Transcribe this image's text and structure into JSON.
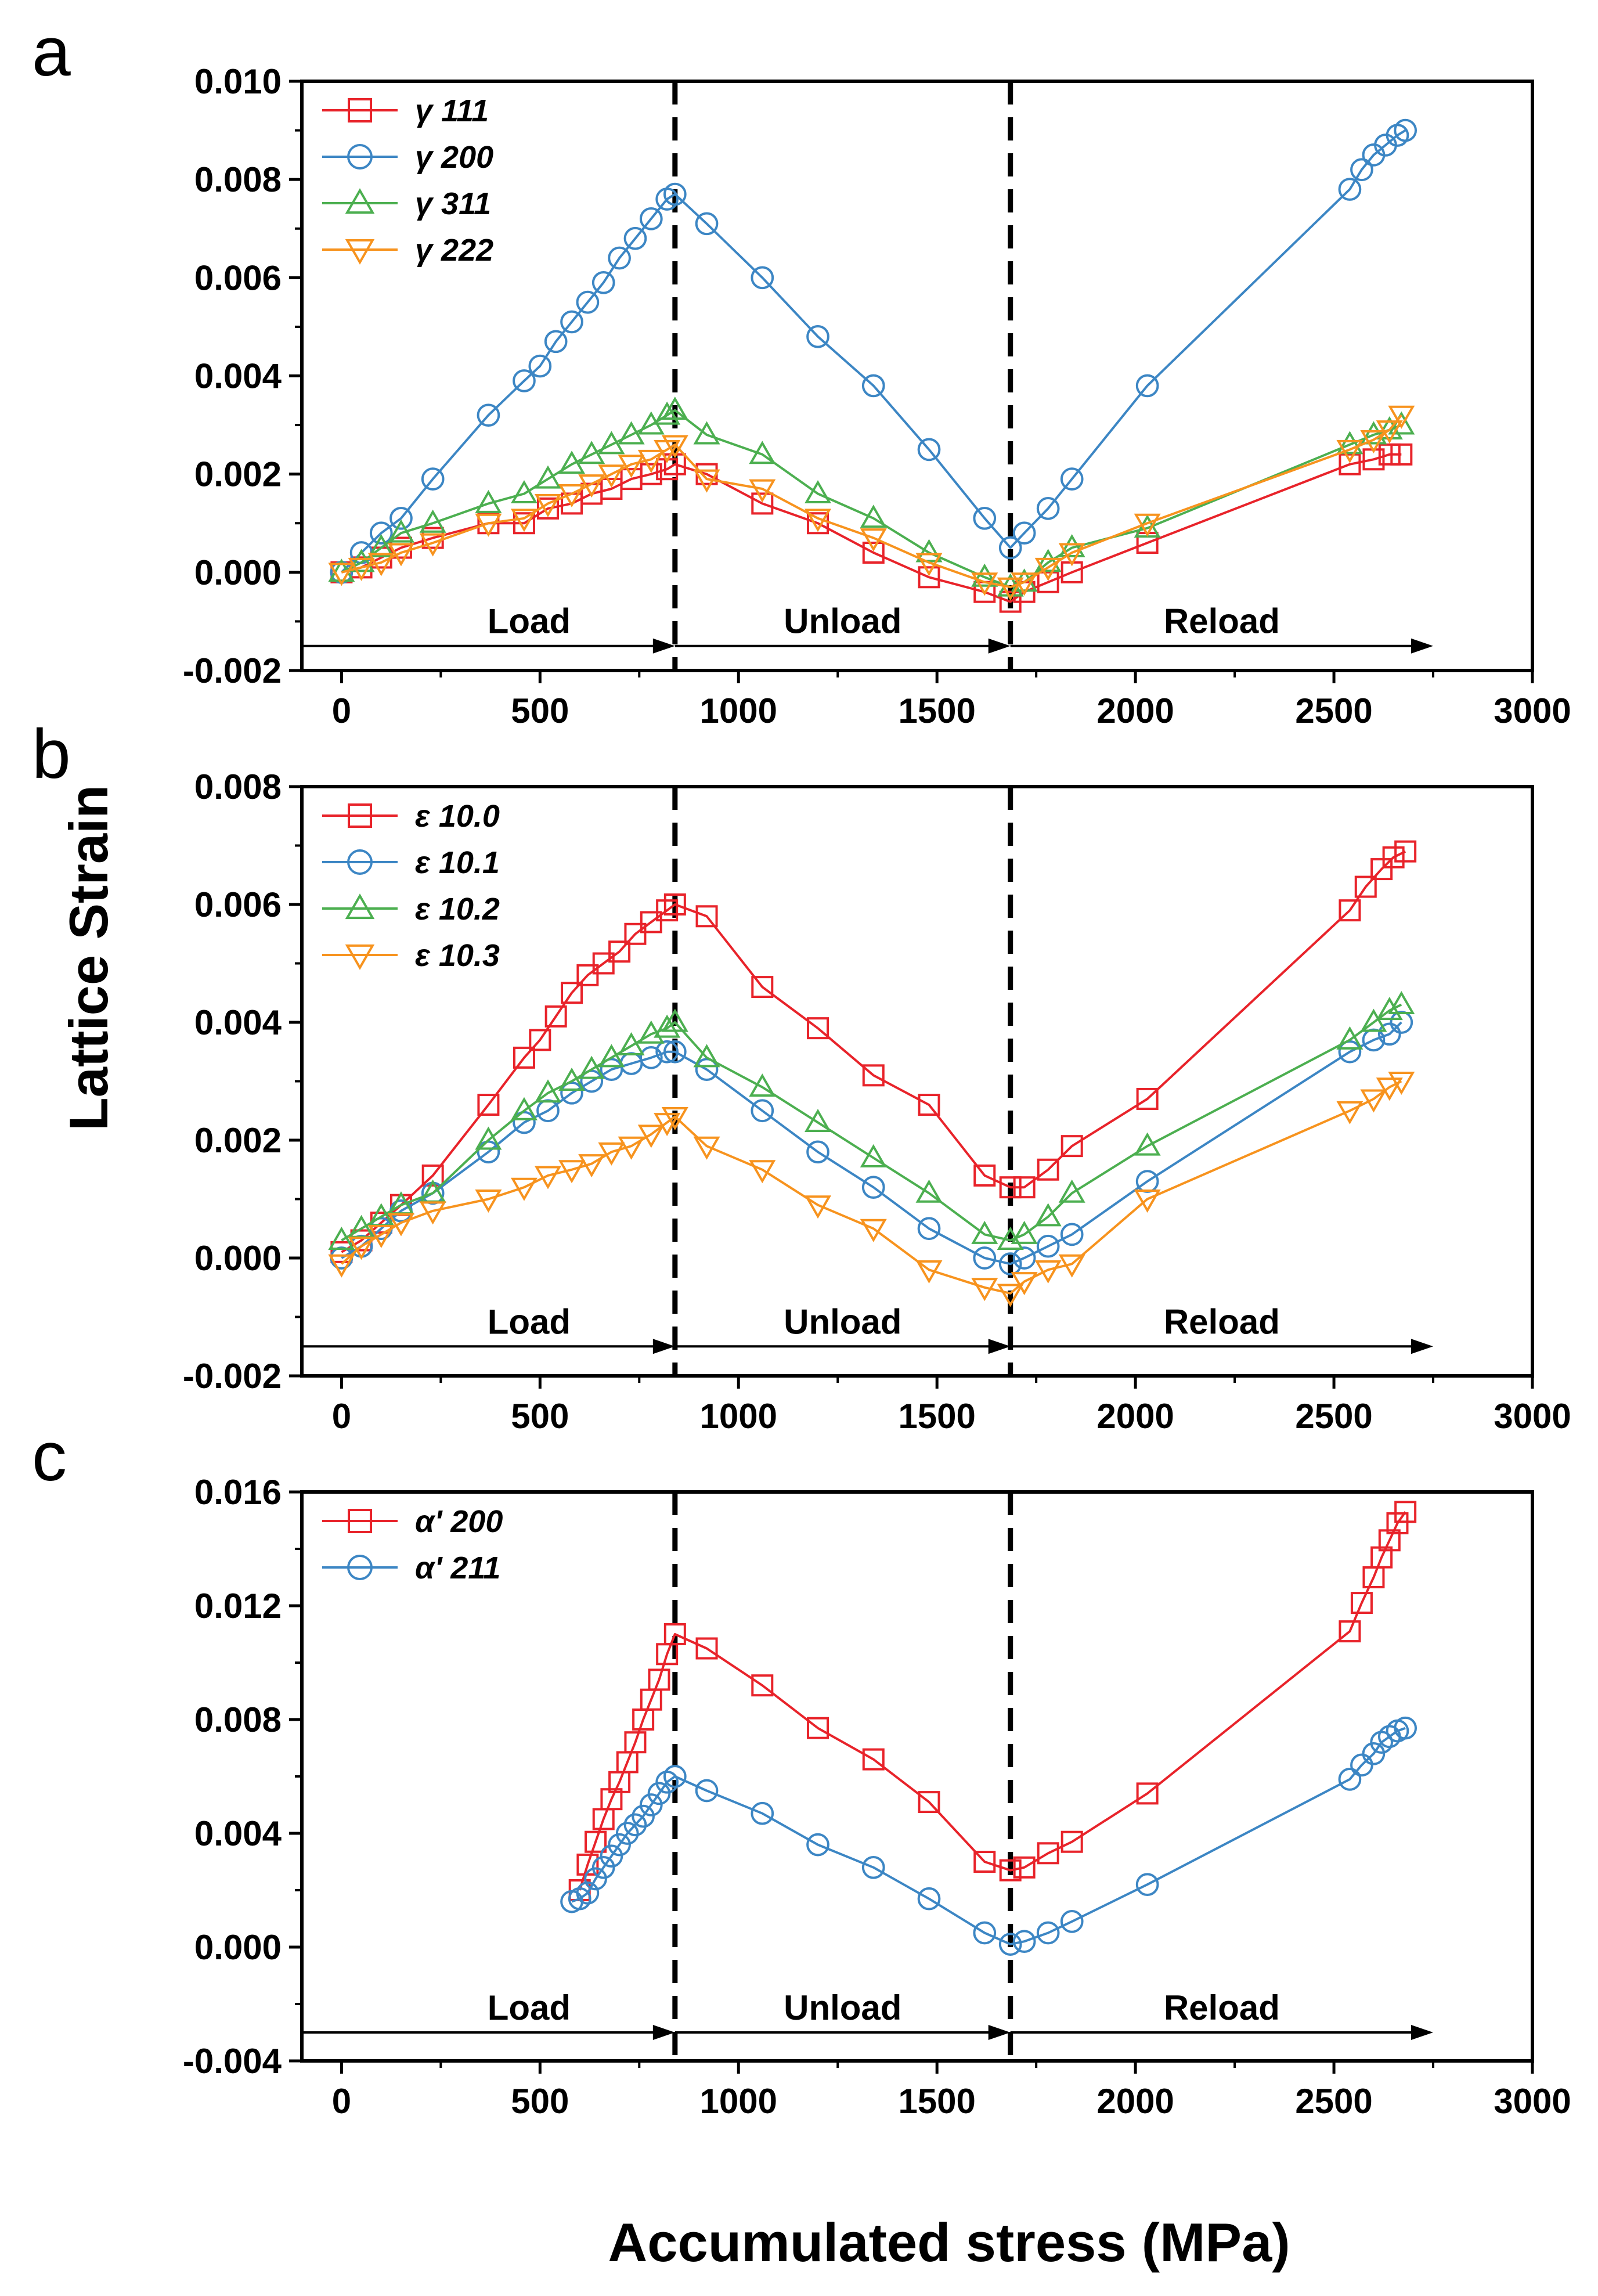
{
  "figure": {
    "xlabel": "Accumulated stress (MPa)",
    "ylabel": "Lattice Strain"
  },
  "colors": {
    "red": "#e8232a",
    "blue": "#3c86c4",
    "green": "#4caf50",
    "orange": "#f7931e",
    "axis": "#000000"
  },
  "chart_data": [
    {
      "type": "line",
      "panel": "a",
      "xlim": [
        -100,
        3000
      ],
      "ylim": [
        -0.002,
        0.01
      ],
      "xticks": [
        0,
        500,
        1000,
        1500,
        2000,
        2500,
        3000
      ],
      "yticks": [
        -0.002,
        0.0,
        0.002,
        0.004,
        0.006,
        0.008,
        0.01
      ],
      "ytick_labels": [
        "-0.002",
        "0.000",
        "0.002",
        "0.004",
        "0.006",
        "0.008",
        "0.010"
      ],
      "dividers": [
        840,
        1685
      ],
      "phases": [
        "Load",
        "Unload",
        "Reload"
      ],
      "phase_y": -0.0015,
      "series": [
        {
          "name": "γ 111",
          "color": "red",
          "marker": "square",
          "x": [
            0,
            50,
            100,
            150,
            230,
            370,
            460,
            520,
            580,
            630,
            680,
            730,
            780,
            820,
            840,
            920,
            1060,
            1200,
            1340,
            1480,
            1620,
            1685,
            1720,
            1780,
            1840,
            2030,
            2540,
            2600,
            2640,
            2670
          ],
          "y": [
            0.0,
            0.0001,
            0.0003,
            0.0005,
            0.0007,
            0.001,
            0.001,
            0.0013,
            0.0014,
            0.0016,
            0.0017,
            0.0019,
            0.002,
            0.0021,
            0.0022,
            0.002,
            0.0014,
            0.001,
            0.0004,
            -0.0001,
            -0.0004,
            -0.0006,
            -0.0004,
            -0.0002,
            0.0,
            0.0006,
            0.0022,
            0.0023,
            0.0024,
            0.0024
          ]
        },
        {
          "name": "γ 200",
          "color": "blue",
          "marker": "circle",
          "x": [
            0,
            50,
            100,
            150,
            230,
            370,
            460,
            500,
            540,
            580,
            620,
            660,
            700,
            740,
            780,
            820,
            840,
            920,
            1060,
            1200,
            1340,
            1480,
            1620,
            1685,
            1720,
            1780,
            1840,
            2030,
            2540,
            2570,
            2600,
            2630,
            2660,
            2680
          ],
          "y": [
            0.0,
            0.0004,
            0.0008,
            0.0011,
            0.0019,
            0.0032,
            0.0039,
            0.0042,
            0.0047,
            0.0051,
            0.0055,
            0.0059,
            0.0064,
            0.0068,
            0.0072,
            0.0076,
            0.0077,
            0.0071,
            0.006,
            0.0048,
            0.0038,
            0.0025,
            0.0011,
            0.0005,
            0.0008,
            0.0013,
            0.0019,
            0.0038,
            0.0078,
            0.0082,
            0.0085,
            0.0087,
            0.0089,
            0.009
          ]
        },
        {
          "name": "γ 311",
          "color": "green",
          "marker": "triangle-up",
          "x": [
            0,
            50,
            100,
            150,
            230,
            370,
            460,
            520,
            580,
            630,
            680,
            730,
            780,
            820,
            840,
            920,
            1060,
            1200,
            1340,
            1480,
            1620,
            1685,
            1720,
            1780,
            1840,
            2030,
            2540,
            2600,
            2640,
            2670
          ],
          "y": [
            0.0,
            0.0002,
            0.0005,
            0.0008,
            0.001,
            0.0014,
            0.0016,
            0.0019,
            0.0022,
            0.0024,
            0.0026,
            0.0028,
            0.003,
            0.0032,
            0.0033,
            0.0028,
            0.0024,
            0.0016,
            0.0011,
            0.0004,
            -0.0001,
            -0.0003,
            -0.0002,
            0.0002,
            0.0005,
            0.0009,
            0.0026,
            0.0028,
            0.0029,
            0.003
          ]
        },
        {
          "name": "γ 222",
          "color": "orange",
          "marker": "triangle-down",
          "x": [
            0,
            50,
            100,
            150,
            230,
            370,
            460,
            520,
            580,
            630,
            680,
            730,
            780,
            820,
            840,
            920,
            1060,
            1200,
            1340,
            1480,
            1620,
            1685,
            1720,
            1780,
            1840,
            2030,
            2540,
            2600,
            2640,
            2670
          ],
          "y": [
            0.0,
            0.0001,
            0.0002,
            0.0004,
            0.0006,
            0.001,
            0.0011,
            0.0014,
            0.0016,
            0.0018,
            0.002,
            0.0022,
            0.0023,
            0.0025,
            0.0026,
            0.0019,
            0.0017,
            0.0011,
            0.0007,
            0.0002,
            -0.0002,
            -0.0003,
            -0.0002,
            0.0001,
            0.0004,
            0.001,
            0.0025,
            0.0027,
            0.0029,
            0.0032
          ]
        }
      ]
    },
    {
      "type": "line",
      "panel": "b",
      "xlim": [
        -100,
        3000
      ],
      "ylim": [
        -0.002,
        0.008
      ],
      "xticks": [
        0,
        500,
        1000,
        1500,
        2000,
        2500,
        3000
      ],
      "yticks": [
        -0.002,
        0.0,
        0.002,
        0.004,
        0.006,
        0.008
      ],
      "ytick_labels": [
        "-0.002",
        "0.000",
        "0.002",
        "0.004",
        "0.006",
        "0.008"
      ],
      "dividers": [
        840,
        1685
      ],
      "phases": [
        "Load",
        "Unload",
        "Reload"
      ],
      "phase_y": -0.0015,
      "series": [
        {
          "name": "ε 10.0",
          "color": "red",
          "marker": "square",
          "x": [
            0,
            50,
            100,
            150,
            230,
            370,
            460,
            500,
            540,
            580,
            620,
            660,
            700,
            740,
            780,
            820,
            840,
            920,
            1060,
            1200,
            1340,
            1480,
            1620,
            1685,
            1720,
            1780,
            1840,
            2030,
            2540,
            2580,
            2620,
            2650,
            2680
          ],
          "y": [
            0.0001,
            0.0003,
            0.0006,
            0.0009,
            0.0014,
            0.0026,
            0.0034,
            0.0037,
            0.0041,
            0.0045,
            0.0048,
            0.005,
            0.0052,
            0.0055,
            0.0057,
            0.0059,
            0.006,
            0.0058,
            0.0046,
            0.0039,
            0.0031,
            0.0026,
            0.0014,
            0.0012,
            0.0012,
            0.0015,
            0.0019,
            0.0027,
            0.0059,
            0.0063,
            0.0066,
            0.0068,
            0.0069
          ]
        },
        {
          "name": "ε 10.1",
          "color": "blue",
          "marker": "circle",
          "x": [
            0,
            50,
            100,
            150,
            230,
            370,
            460,
            520,
            580,
            630,
            680,
            730,
            780,
            820,
            840,
            920,
            1060,
            1200,
            1340,
            1480,
            1620,
            1685,
            1720,
            1780,
            1840,
            2030,
            2540,
            2600,
            2640,
            2670
          ],
          "y": [
            0.0,
            0.0002,
            0.0005,
            0.0008,
            0.0011,
            0.0018,
            0.0023,
            0.0025,
            0.0028,
            0.003,
            0.0032,
            0.0033,
            0.0034,
            0.0035,
            0.0035,
            0.0032,
            0.0025,
            0.0018,
            0.0012,
            0.0005,
            0.0,
            -0.0001,
            0.0,
            0.0002,
            0.0004,
            0.0013,
            0.0035,
            0.0037,
            0.0038,
            0.004
          ]
        },
        {
          "name": "ε 10.2",
          "color": "green",
          "marker": "triangle-up",
          "x": [
            0,
            50,
            100,
            150,
            230,
            370,
            460,
            520,
            580,
            630,
            680,
            730,
            780,
            820,
            840,
            920,
            1060,
            1200,
            1340,
            1480,
            1620,
            1685,
            1720,
            1780,
            1840,
            2030,
            2540,
            2600,
            2640,
            2670
          ],
          "y": [
            0.0003,
            0.0005,
            0.0007,
            0.0009,
            0.0011,
            0.002,
            0.0025,
            0.0028,
            0.003,
            0.0032,
            0.0034,
            0.0036,
            0.0038,
            0.0039,
            0.004,
            0.0034,
            0.0029,
            0.0023,
            0.0017,
            0.0011,
            0.0004,
            0.0003,
            0.0004,
            0.0007,
            0.0011,
            0.0019,
            0.0037,
            0.004,
            0.0042,
            0.0043
          ]
        },
        {
          "name": "ε 10.3",
          "color": "orange",
          "marker": "triangle-down",
          "x": [
            0,
            50,
            100,
            150,
            230,
            370,
            460,
            520,
            580,
            630,
            680,
            730,
            780,
            820,
            840,
            920,
            1060,
            1200,
            1340,
            1480,
            1620,
            1685,
            1720,
            1780,
            1840,
            2030,
            2540,
            2600,
            2640,
            2670
          ],
          "y": [
            -0.0001,
            0.0002,
            0.0004,
            0.0006,
            0.0008,
            0.001,
            0.0012,
            0.0014,
            0.0015,
            0.0016,
            0.0018,
            0.0019,
            0.0021,
            0.0023,
            0.0024,
            0.0019,
            0.0015,
            0.0009,
            0.0005,
            -0.0002,
            -0.0005,
            -0.0006,
            -0.0004,
            -0.0002,
            -0.0001,
            0.001,
            0.0025,
            0.0027,
            0.0029,
            0.003
          ]
        }
      ]
    },
    {
      "type": "line",
      "panel": "c",
      "xlim": [
        -100,
        3000
      ],
      "ylim": [
        -0.004,
        0.016
      ],
      "xticks": [
        0,
        500,
        1000,
        1500,
        2000,
        2500,
        3000
      ],
      "yticks": [
        -0.004,
        0.0,
        0.004,
        0.008,
        0.012,
        0.016
      ],
      "ytick_labels": [
        "-0.004",
        "0.000",
        "0.004",
        "0.008",
        "0.012",
        "0.016"
      ],
      "dividers": [
        840,
        1685
      ],
      "phases": [
        "Load",
        "Unload",
        "Reload"
      ],
      "phase_y": -0.003,
      "series": [
        {
          "name": "α' 200",
          "color": "red",
          "marker": "square",
          "x": [
            600,
            620,
            640,
            660,
            680,
            700,
            720,
            740,
            760,
            780,
            800,
            820,
            840,
            920,
            1060,
            1200,
            1340,
            1480,
            1620,
            1685,
            1720,
            1780,
            1840,
            2030,
            2540,
            2570,
            2600,
            2620,
            2640,
            2660,
            2680
          ],
          "y": [
            0.002,
            0.0029,
            0.0037,
            0.0045,
            0.0052,
            0.0058,
            0.0065,
            0.0072,
            0.008,
            0.0087,
            0.0094,
            0.0103,
            0.011,
            0.0105,
            0.0092,
            0.0077,
            0.0066,
            0.0051,
            0.003,
            0.0027,
            0.0028,
            0.0033,
            0.0037,
            0.0054,
            0.0111,
            0.0121,
            0.013,
            0.0137,
            0.0143,
            0.0149,
            0.0153
          ]
        },
        {
          "name": "α' 211",
          "color": "blue",
          "marker": "circle",
          "x": [
            580,
            600,
            620,
            640,
            660,
            680,
            700,
            720,
            740,
            760,
            780,
            800,
            820,
            840,
            920,
            1060,
            1200,
            1340,
            1480,
            1620,
            1685,
            1720,
            1780,
            1840,
            2030,
            2540,
            2570,
            2600,
            2620,
            2640,
            2660,
            2680
          ],
          "y": [
            0.0016,
            0.0017,
            0.0019,
            0.0024,
            0.0028,
            0.0032,
            0.0036,
            0.004,
            0.0043,
            0.0046,
            0.005,
            0.0054,
            0.0058,
            0.006,
            0.0055,
            0.0047,
            0.0036,
            0.0028,
            0.0017,
            0.0005,
            0.0001,
            0.0002,
            0.0005,
            0.0009,
            0.0022,
            0.0059,
            0.0064,
            0.0068,
            0.0072,
            0.0074,
            0.0076,
            0.0077
          ]
        }
      ]
    }
  ]
}
